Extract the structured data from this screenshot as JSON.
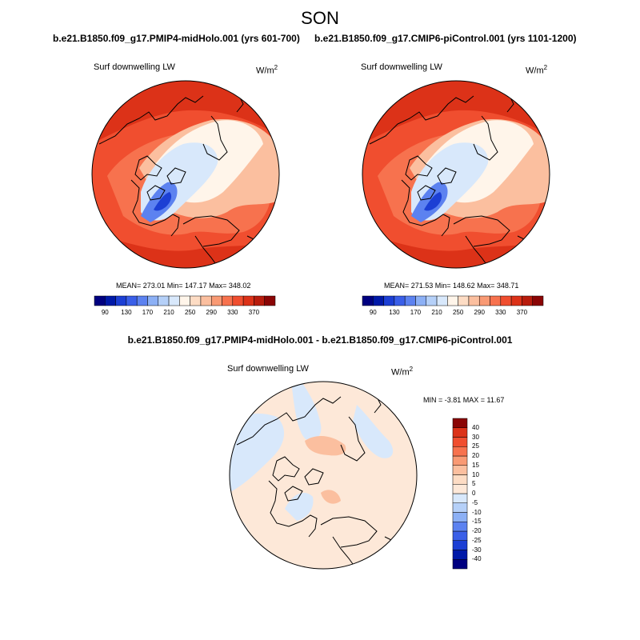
{
  "season": "SON",
  "panels": [
    {
      "title": "b.e21.B1850.f09_g17.PMIP4-midHolo.001 (yrs 601-700)",
      "variable": "Surf downwelling LW",
      "units": "W/m",
      "units_exp": "2",
      "stats": "MEAN= 273.01  Min= 147.17  Max= 348.02"
    },
    {
      "title": "b.e21.B1850.f09_g17.CMIP6-piControl.001 (yrs 1101-1200)",
      "variable": "Surf downwelling LW",
      "units": "W/m",
      "units_exp": "2",
      "stats": "MEAN= 271.53  Min= 148.62  Max= 348.71"
    }
  ],
  "diff": {
    "title": "b.e21.B1850.f09_g17.PMIP4-midHolo.001 - b.e21.B1850.f09_g17.CMIP6-piControl.001",
    "variable": "Surf downwelling LW",
    "units": "W/m",
    "units_exp": "2",
    "stats": "MIN =  -3.81 MAX =  11.67"
  },
  "colorbar_abs": {
    "colors": [
      "#000080",
      "#0019a8",
      "#1c3fd4",
      "#3a5fe8",
      "#5c82f0",
      "#8cb0f5",
      "#b5d0f8",
      "#d8e8fb",
      "#fff5ea",
      "#fddcc4",
      "#fbbf9f",
      "#f99a74",
      "#f7724e",
      "#f04e2f",
      "#dc3218",
      "#b81c0d",
      "#8a0505"
    ],
    "tick_labels": [
      "90",
      "130",
      "170",
      "210",
      "250",
      "290",
      "330",
      "370"
    ]
  },
  "colorbar_diff": {
    "colors": [
      "#000080",
      "#0019a8",
      "#1c3fd4",
      "#3a5fe8",
      "#5c82f0",
      "#8cb0f5",
      "#b5d0f8",
      "#d8e8fb",
      "#fde8d8",
      "#fddcc4",
      "#fbbf9f",
      "#f99a74",
      "#f7724e",
      "#f04e2f",
      "#dc3218",
      "#8a0505"
    ],
    "tick_labels": [
      "40",
      "30",
      "25",
      "20",
      "15",
      "10",
      "5",
      "0",
      "-5",
      "-10",
      "-15",
      "-20",
      "-25",
      "-30",
      "-40"
    ]
  },
  "map_colors": {
    "warm_dark": "#dc3218",
    "warm_mid": "#f04e2f",
    "warm": "#f7724e",
    "warm_light": "#fbbf9f",
    "neutral": "#fff5ea",
    "cool_light": "#d8e8fb",
    "cool_mid": "#5c82f0",
    "cool_dark": "#1c3fd4",
    "diff_base": "#fde8d8",
    "diff_warm": "#fbbf9f",
    "diff_cool": "#d8e8fb"
  }
}
